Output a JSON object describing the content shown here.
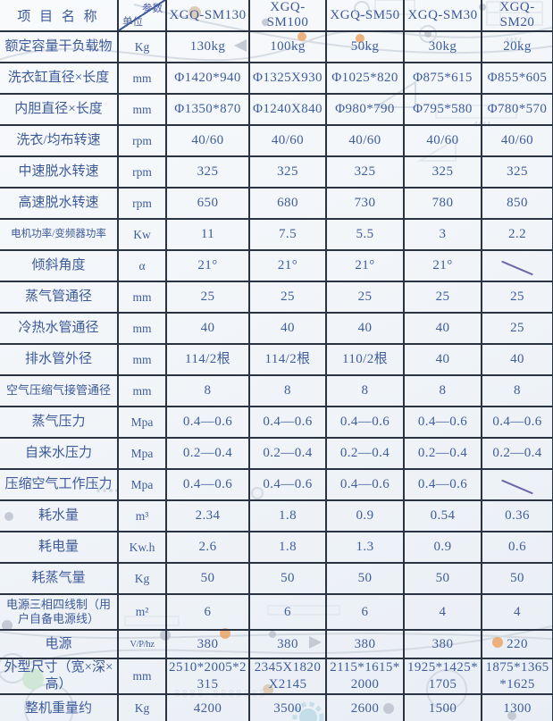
{
  "table": {
    "corner": {
      "item_header": "项 目 名 称",
      "diag_top": "参数",
      "diag_bottom": "单位"
    },
    "models": [
      "XGQ-SM130",
      "XGQ-SM100",
      "XGQ-SM50",
      "XGQ-SM30",
      "XGQ-SM20"
    ],
    "rows": [
      {
        "label": "额定容量干负载物",
        "unit": "Kg",
        "values": [
          "130kg",
          "100kg",
          "50kg",
          "30kg",
          "20kg"
        ]
      },
      {
        "label": "洗衣缸直径×长度",
        "unit": "mm",
        "values": [
          "Φ1420*940",
          "Φ1325X930",
          "Φ1025*820",
          "Φ875*615",
          "Φ855*605"
        ]
      },
      {
        "label": "内胆直径×长度",
        "unit": "mm",
        "values": [
          "Φ1350*870",
          "Φ1240X840",
          "Φ980*790",
          "Φ795*580",
          "Φ780*570"
        ]
      },
      {
        "label": "洗衣/均布转速",
        "unit": "rpm",
        "values": [
          "40/60",
          "40/60",
          "40/60",
          "40/60",
          "40/60"
        ]
      },
      {
        "label": "中速脱水转速",
        "unit": "rpm",
        "values": [
          "325",
          "325",
          "325",
          "325",
          "325"
        ]
      },
      {
        "label": "高速脱水转速",
        "unit": "rpm",
        "values": [
          "650",
          "680",
          "730",
          "780",
          "850"
        ]
      },
      {
        "label": "电机功率/变频器功率",
        "unit": "Kw",
        "values": [
          "11",
          "7.5",
          "5.5",
          "3",
          "2.2"
        ],
        "label_size": "xs"
      },
      {
        "label": "倾斜角度",
        "unit": "α",
        "values": [
          "21°",
          "21°",
          "21°",
          "21°",
          "╲"
        ]
      },
      {
        "label": "蒸气管通径",
        "unit": "mm",
        "values": [
          "25",
          "25",
          "25",
          "25",
          "25"
        ]
      },
      {
        "label": "冷热水管通径",
        "unit": "mm",
        "values": [
          "40",
          "40",
          "40",
          "40",
          "25"
        ]
      },
      {
        "label": "排水管外径",
        "unit": "mm",
        "values": [
          "114/2根",
          "114/2根",
          "110/2根",
          "40",
          "40"
        ]
      },
      {
        "label": "空气压缩气接管通径",
        "unit": "mm",
        "values": [
          "8",
          "8",
          "8",
          "8",
          "8"
        ],
        "label_size": "s"
      },
      {
        "label": "蒸气压力",
        "unit": "Mpa",
        "values": [
          "0.4—0.6",
          "0.4—0.6",
          "0.4—0.6",
          "0.4—0.6",
          "0.4—0.6"
        ]
      },
      {
        "label": "自来水压力",
        "unit": "Mpa",
        "values": [
          "0.2—0.4",
          "0.2—0.4",
          "0.2—0.4",
          "0.2—0.4",
          "0.2—0.4"
        ]
      },
      {
        "label": "压缩空气工作压力",
        "unit": "Mpa",
        "values": [
          "0.4—0.6",
          "0.4—0.6",
          "0.4—0.6",
          "0.4—0.6",
          "╲"
        ]
      },
      {
        "label": "耗水量",
        "unit": "m³",
        "values": [
          "2.34",
          "1.8",
          "0.9",
          "0.54",
          "0.36"
        ]
      },
      {
        "label": "耗电量",
        "unit": "Kw.h",
        "values": [
          "2.6",
          "1.8",
          "1.3",
          "0.9",
          "0.6"
        ]
      },
      {
        "label": "耗蒸气量",
        "unit": "Kg",
        "values": [
          "50",
          "50",
          "50",
          "50",
          "50"
        ]
      },
      {
        "label": "电源三相四线制（用户自备电源线）",
        "unit": "m²",
        "values": [
          "6",
          "6",
          "6",
          "4",
          "4"
        ],
        "label_size": "s",
        "height": "tall"
      },
      {
        "label": "电源",
        "unit": "V/P/hz",
        "values": [
          "380",
          "380",
          "380",
          "380",
          "220"
        ],
        "unit_size": "small",
        "height": "short"
      },
      {
        "label": "外型尺寸（宽×深×高）",
        "unit": "mm",
        "values": [
          "2510*2005*2315",
          "2345X1820X2145",
          "2115*1615*2000",
          "1925*1425*1705",
          "1875*1365*1625"
        ],
        "height": "tall"
      },
      {
        "label": "整机重量约",
        "unit": "Kg",
        "values": [
          "4200",
          "3500",
          "2600",
          "1500",
          "1300"
        ],
        "height": "short"
      }
    ]
  }
}
